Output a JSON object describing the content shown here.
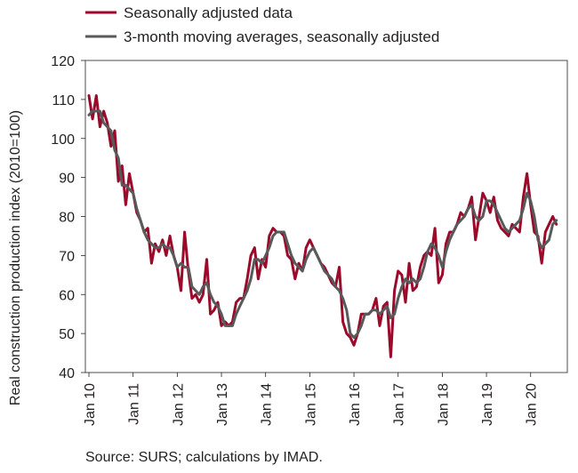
{
  "chart_data": {
    "type": "line",
    "ylabel": "Real construction production index (2010=100)",
    "xlabel": "",
    "ylim": [
      40,
      120
    ],
    "y_ticks": [
      40,
      50,
      60,
      70,
      80,
      90,
      100,
      110,
      120
    ],
    "x_ticks": [
      "Jan 10",
      "Jan 11",
      "Jan 12",
      "Jan 13",
      "Jan 14",
      "Jan 15",
      "Jan 16",
      "Jan 17",
      "Jan 18",
      "Jan 19",
      "Jan 20"
    ],
    "x_range_months": [
      0,
      129
    ],
    "grid": false,
    "legend_position": "top-left",
    "series": [
      {
        "name": "Seasonally adjusted data",
        "color": "#9b0a2a",
        "values": [
          111,
          105,
          111,
          103,
          107,
          104,
          98,
          102,
          89,
          93,
          83,
          91,
          86,
          81,
          79,
          76,
          77,
          68,
          73,
          71,
          74,
          70,
          75,
          70,
          67,
          61,
          76,
          66,
          59,
          60,
          58,
          60,
          69,
          55,
          56,
          58,
          52,
          53,
          52,
          53,
          58,
          59,
          59,
          64,
          70,
          72,
          64,
          69,
          67,
          75,
          77,
          76,
          76,
          75,
          70,
          69,
          64,
          68,
          66,
          72,
          74,
          72,
          70,
          68,
          67,
          65,
          63,
          62,
          67,
          53,
          50,
          49,
          47,
          50,
          55,
          55,
          55,
          56,
          59,
          52,
          57,
          58,
          44,
          61,
          66,
          65,
          58,
          68,
          61,
          62,
          67,
          70,
          71,
          70,
          77,
          63,
          65,
          73,
          76,
          76,
          78,
          81,
          80,
          82,
          85,
          74,
          80,
          86,
          84,
          81,
          85,
          79,
          77,
          76,
          75,
          78,
          77,
          76,
          85,
          91,
          83,
          76,
          75,
          68,
          76,
          78,
          80,
          78
        ]
      },
      {
        "name": "3-month moving averages, seasonally adjusted",
        "color": "#58595b",
        "values": [
          106,
          107,
          107,
          107,
          104,
          103,
          102,
          97,
          95,
          88,
          88,
          87,
          86,
          82,
          79,
          76,
          74,
          73,
          72,
          72,
          73,
          72,
          72,
          70,
          67,
          68,
          67,
          67,
          62,
          61,
          60,
          62,
          63,
          60,
          58,
          57,
          55,
          52,
          52,
          52,
          55,
          57,
          59,
          61,
          64,
          69,
          69,
          68,
          70,
          72,
          75,
          76,
          76,
          76,
          73,
          70,
          68,
          67,
          66,
          69,
          71,
          72,
          70,
          68,
          66,
          65,
          64,
          62,
          61,
          59,
          56,
          50,
          49,
          50,
          52,
          55,
          55,
          56,
          56,
          55,
          56,
          57,
          54,
          55,
          59,
          62,
          64,
          63,
          64,
          63,
          64,
          67,
          71,
          73,
          72,
          70,
          67,
          71,
          74,
          76,
          78,
          79,
          80,
          82,
          83,
          80,
          79,
          80,
          84,
          84,
          83,
          81,
          79,
          77,
          76,
          77,
          78,
          79,
          82,
          86,
          84,
          80,
          74,
          72,
          73,
          74,
          78,
          79
        ]
      }
    ]
  },
  "source_note": "Source: SURS; calculations by IMAD."
}
